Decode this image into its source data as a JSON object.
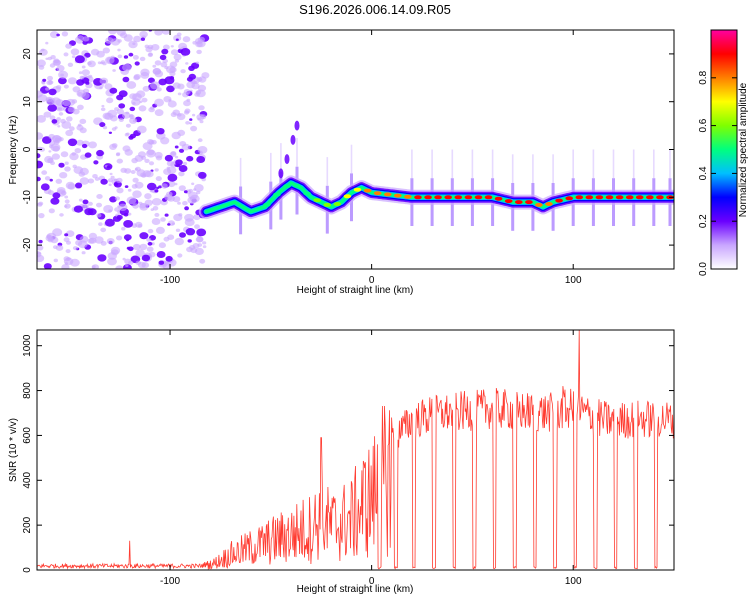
{
  "title": "S196.2026.006.14.09.R05",
  "chart_data": [
    {
      "type": "heatmap",
      "name": "spectrogram",
      "xlabel": "Height of straight line (km)",
      "ylabel": "Frequency (Hz)",
      "xlim": [
        -166,
        150
      ],
      "ylim": [
        -25,
        25
      ],
      "xticks": [
        -100,
        0,
        100
      ],
      "xtick_labels": [
        "-100",
        "0",
        "100"
      ],
      "yticks": [
        20,
        10,
        0,
        -10,
        -20
      ],
      "ytick_labels": [
        "20",
        "10",
        "0",
        "-10",
        "-20"
      ],
      "colorbar": {
        "label": "Normalized spectral amplitude",
        "range": [
          0,
          1
        ],
        "ticks": [
          0.0,
          0.2,
          0.4,
          0.6,
          0.8
        ],
        "tick_labels": [
          "0.0",
          "0.2",
          "0.4",
          "0.6",
          "0.8"
        ],
        "colors": [
          "#ffffff",
          "#c9a6ff",
          "#6a00ff",
          "#0000ff",
          "#00bfff",
          "#00ff7f",
          "#7fff00",
          "#ffff00",
          "#ff7f00",
          "#ff0000",
          "#ff00a0"
        ]
      },
      "noise_region_x": [
        -166,
        -82
      ],
      "ridge": {
        "x": [
          -82,
          -75,
          -68,
          -60,
          -53,
          -46,
          -40,
          -35,
          -30,
          -25,
          -20,
          -15,
          -10,
          -5,
          0,
          20,
          40,
          60,
          70,
          80,
          85,
          90,
          100,
          120,
          150
        ],
        "freq": [
          -13,
          -12,
          -11,
          -13,
          -12,
          -9,
          -7,
          -8,
          -10,
          -11,
          -12,
          -11,
          -9,
          -8,
          -9,
          -10,
          -10,
          -10,
          -11,
          -11,
          -12,
          -11,
          -10,
          -10,
          -10
        ],
        "amplitude": [
          0.35,
          0.4,
          0.35,
          0.4,
          0.45,
          0.5,
          0.45,
          0.5,
          0.55,
          0.6,
          0.55,
          0.65,
          0.7,
          0.75,
          0.8,
          0.85,
          0.9,
          0.85,
          0.9,
          0.85,
          0.8,
          0.85,
          0.9,
          0.9,
          0.9
        ]
      },
      "streak_x": [
        -65,
        -50,
        -45,
        -37,
        -22,
        -10,
        20,
        30,
        40,
        50,
        60,
        70,
        80,
        90,
        100,
        110,
        120,
        130,
        140,
        148
      ]
    },
    {
      "type": "line",
      "name": "snr",
      "xlabel": "Height of straight line (km)",
      "ylabel": "SNR (10 * v/v)",
      "xlim": [
        -166,
        150
      ],
      "ylim": [
        0,
        1070
      ],
      "xticks": [
        -100,
        0,
        100
      ],
      "xtick_labels": [
        "-100",
        "0",
        "100"
      ],
      "yticks": [
        0,
        200,
        400,
        600,
        800,
        1000
      ],
      "ytick_labels": [
        "0",
        "200",
        "400",
        "600",
        "800",
        "1000"
      ],
      "color": "#ff3b30",
      "envelope": {
        "x": [
          -166,
          -120,
          -85,
          -78,
          -70,
          -60,
          -50,
          -40,
          -30,
          -25,
          -20,
          -10,
          -5,
          0,
          5,
          10,
          15,
          20,
          30,
          40,
          50,
          60,
          70,
          80,
          90,
          100,
          110,
          120,
          130,
          150
        ],
        "level": [
          20,
          20,
          20,
          40,
          90,
          130,
          170,
          210,
          250,
          300,
          260,
          300,
          380,
          420,
          520,
          600,
          640,
          680,
          710,
          720,
          730,
          740,
          730,
          720,
          720,
          740,
          700,
          680,
          690,
          690
        ]
      },
      "spikes": [
        [
          -120,
          130
        ],
        [
          -25,
          590
        ],
        [
          -3,
          480
        ],
        [
          3,
          560
        ],
        [
          10,
          680
        ],
        [
          103,
          1070
        ],
        [
          95,
          820
        ]
      ],
      "dips_x": [
        4,
        12,
        21,
        31,
        41,
        51,
        61,
        71,
        81,
        91,
        101,
        111,
        121,
        131,
        141
      ]
    }
  ]
}
